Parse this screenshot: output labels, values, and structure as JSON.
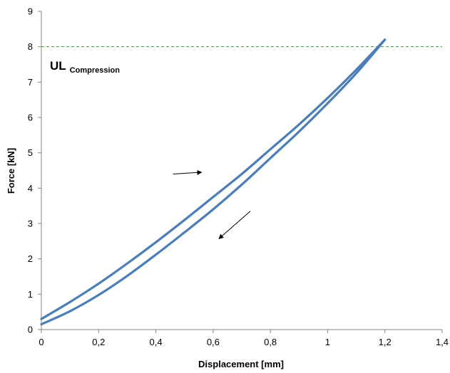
{
  "chart_data": {
    "type": "line",
    "title": "",
    "xlabel": "Displacement [mm]",
    "ylabel": "Force [kN]",
    "xlim": [
      0,
      1.4
    ],
    "ylim": [
      0,
      9
    ],
    "x_ticks": [
      "0",
      "0,2",
      "0,4",
      "0,6",
      "0,8",
      "1",
      "1,2",
      "1,4"
    ],
    "y_ticks": [
      "0",
      "1",
      "2",
      "3",
      "4",
      "5",
      "6",
      "7",
      "8",
      "9"
    ],
    "grid": false,
    "legend": "none",
    "colors": {
      "series": "#4a7ebb",
      "limit_line": "#2ca02c",
      "arrow": "#000000"
    },
    "series": [
      {
        "x": [
          0.0,
          0.1,
          0.2,
          0.3,
          0.4,
          0.5,
          0.6,
          0.7,
          0.8,
          0.9,
          1.0,
          1.1,
          1.2
        ],
        "y": [
          0.3,
          0.78,
          1.3,
          1.87,
          2.47,
          3.1,
          3.75,
          4.4,
          5.1,
          5.8,
          6.55,
          7.35,
          8.2
        ]
      },
      {
        "x": [
          1.2,
          1.1,
          1.0,
          0.9,
          0.8,
          0.7,
          0.6,
          0.5,
          0.4,
          0.3,
          0.2,
          0.1,
          0.0
        ],
        "y": [
          8.2,
          7.25,
          6.4,
          5.6,
          4.85,
          4.1,
          3.4,
          2.75,
          2.12,
          1.52,
          0.98,
          0.52,
          0.15
        ]
      }
    ],
    "reference_lines": [
      {
        "axis": "y",
        "value": 8,
        "style": "dashed"
      }
    ],
    "annotations": {
      "limit_label_main": "UL",
      "limit_label_sub": "Compression",
      "arrows": [
        {
          "direction": "loading",
          "from": [
            0.46,
            4.4
          ],
          "to": [
            0.56,
            4.45
          ]
        },
        {
          "direction": "unloading",
          "from": [
            0.73,
            3.35
          ],
          "to": [
            0.62,
            2.57
          ]
        }
      ]
    }
  }
}
